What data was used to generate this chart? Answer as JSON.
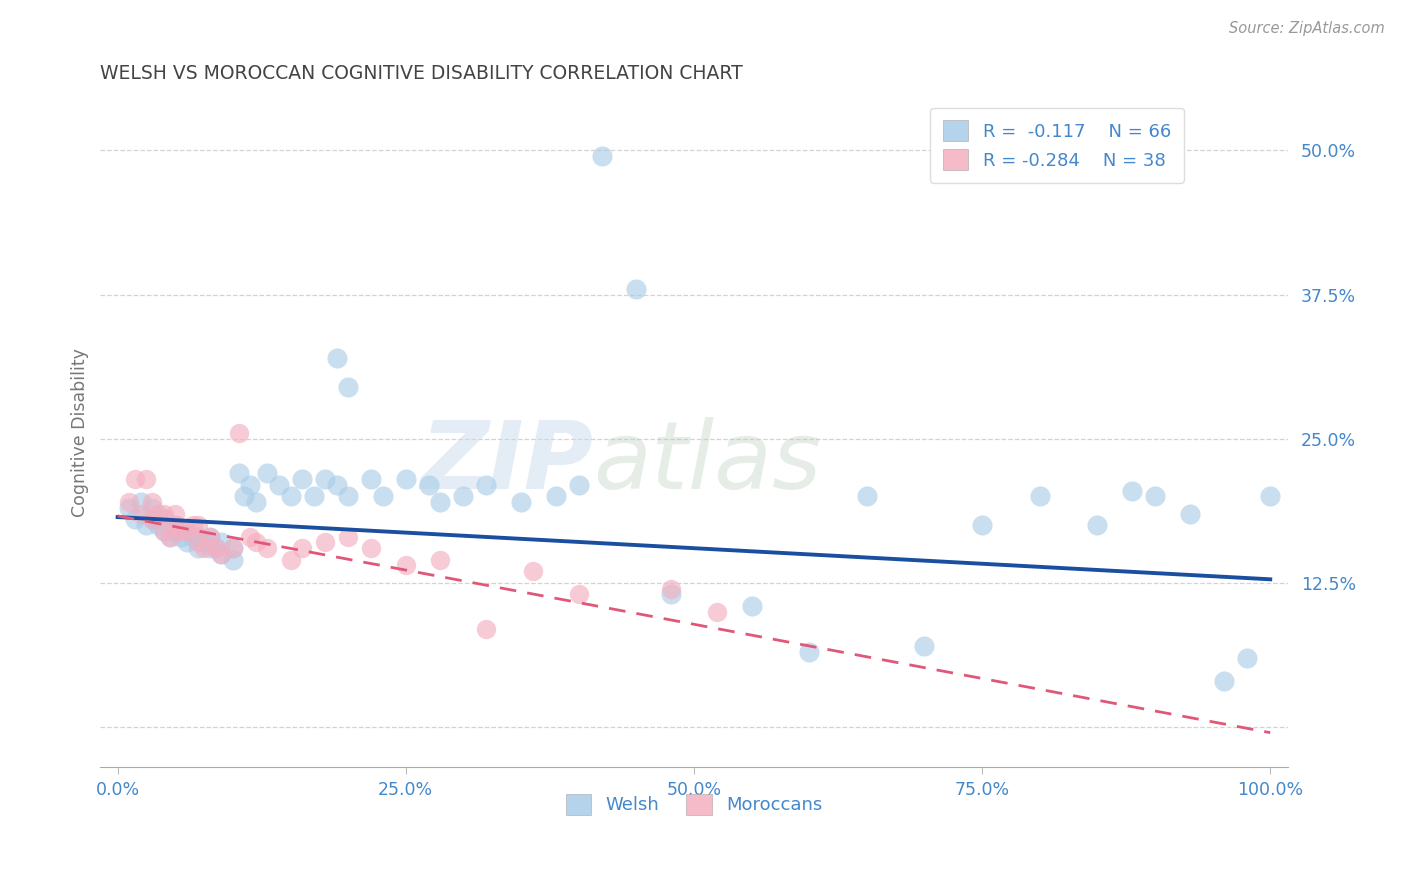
{
  "title": "WELSH VS MOROCCAN COGNITIVE DISABILITY CORRELATION CHART",
  "source": "Source: ZipAtlas.com",
  "ylabel": "Cognitive Disability",
  "welsh_R": -0.117,
  "welsh_N": 66,
  "moroccan_R": -0.284,
  "moroccan_N": 38,
  "welsh_color": "#a8cce8",
  "moroccan_color": "#f4afc0",
  "welsh_line_color": "#1a4fa0",
  "moroccan_line_color": "#e05878",
  "title_color": "#444444",
  "axis_label_color": "#777777",
  "tick_label_color": "#4488cc",
  "watermark_left": "ZIP",
  "watermark_right": "atlas",
  "xlim": [
    -0.015,
    1.015
  ],
  "ylim": [
    -0.035,
    0.545
  ],
  "ytick_vals": [
    0.0,
    0.125,
    0.25,
    0.375,
    0.5
  ],
  "ytick_labels": [
    "",
    "12.5%",
    "25.0%",
    "37.5%",
    "50.0%"
  ],
  "xtick_vals": [
    0.0,
    0.25,
    0.5,
    0.75,
    1.0
  ],
  "xtick_labels": [
    "0.0%",
    "25.0%",
    "50.0%",
    "75.0%",
    "100.0%"
  ],
  "welsh_x": [
    0.01,
    0.015,
    0.02,
    0.025,
    0.03,
    0.03,
    0.035,
    0.04,
    0.04,
    0.045,
    0.05,
    0.05,
    0.055,
    0.06,
    0.06,
    0.065,
    0.07,
    0.07,
    0.075,
    0.08,
    0.08,
    0.085,
    0.09,
    0.09,
    0.1,
    0.1,
    0.105,
    0.11,
    0.115,
    0.12,
    0.13,
    0.14,
    0.15,
    0.16,
    0.17,
    0.18,
    0.19,
    0.2,
    0.22,
    0.23,
    0.25,
    0.27,
    0.28,
    0.3,
    0.32,
    0.35,
    0.38,
    0.4,
    0.42,
    0.45,
    0.48,
    0.55,
    0.6,
    0.65,
    0.7,
    0.75,
    0.8,
    0.85,
    0.88,
    0.9,
    0.93,
    0.96,
    0.98,
    1.0,
    0.2,
    0.19
  ],
  "welsh_y": [
    0.19,
    0.18,
    0.195,
    0.175,
    0.18,
    0.19,
    0.175,
    0.17,
    0.18,
    0.165,
    0.17,
    0.175,
    0.165,
    0.16,
    0.17,
    0.165,
    0.155,
    0.165,
    0.16,
    0.155,
    0.165,
    0.155,
    0.15,
    0.16,
    0.145,
    0.155,
    0.22,
    0.2,
    0.21,
    0.195,
    0.22,
    0.21,
    0.2,
    0.215,
    0.2,
    0.215,
    0.21,
    0.2,
    0.215,
    0.2,
    0.215,
    0.21,
    0.195,
    0.2,
    0.21,
    0.195,
    0.2,
    0.21,
    0.495,
    0.38,
    0.115,
    0.105,
    0.065,
    0.2,
    0.07,
    0.175,
    0.2,
    0.175,
    0.205,
    0.2,
    0.185,
    0.04,
    0.06,
    0.2,
    0.295,
    0.32
  ],
  "moroccan_x": [
    0.01,
    0.015,
    0.02,
    0.025,
    0.03,
    0.03,
    0.035,
    0.04,
    0.04,
    0.045,
    0.05,
    0.05,
    0.055,
    0.06,
    0.065,
    0.07,
    0.07,
    0.075,
    0.08,
    0.085,
    0.09,
    0.1,
    0.105,
    0.115,
    0.12,
    0.13,
    0.15,
    0.16,
    0.18,
    0.2,
    0.22,
    0.25,
    0.28,
    0.32,
    0.36,
    0.4,
    0.48,
    0.52
  ],
  "moroccan_y": [
    0.195,
    0.215,
    0.185,
    0.215,
    0.195,
    0.18,
    0.185,
    0.17,
    0.185,
    0.165,
    0.175,
    0.185,
    0.17,
    0.17,
    0.175,
    0.16,
    0.175,
    0.155,
    0.165,
    0.155,
    0.15,
    0.155,
    0.255,
    0.165,
    0.16,
    0.155,
    0.145,
    0.155,
    0.16,
    0.165,
    0.155,
    0.14,
    0.145,
    0.085,
    0.135,
    0.115,
    0.12,
    0.1
  ],
  "welsh_line_x0": 0.0,
  "welsh_line_x1": 1.0,
  "welsh_line_y0": 0.182,
  "welsh_line_y1": 0.128,
  "moroccan_line_x0": 0.0,
  "moroccan_line_x1": 1.0,
  "moroccan_line_y0": 0.183,
  "moroccan_line_y1": -0.005
}
